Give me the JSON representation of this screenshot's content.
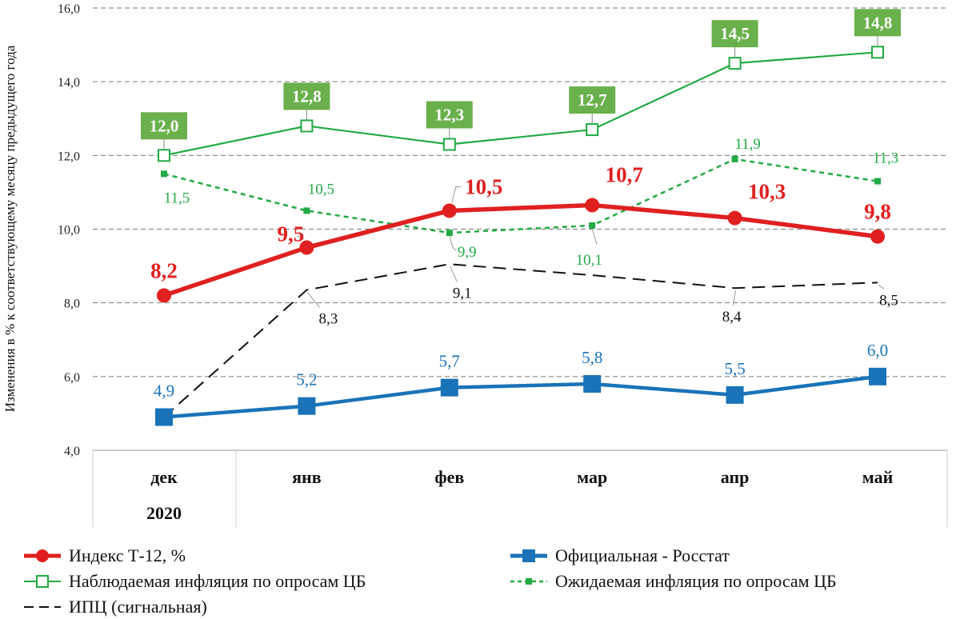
{
  "chart_data": {
    "type": "line",
    "ylabel": "Изменения в % к соответствующему месяцу предыдущего года",
    "ylim": [
      4.0,
      16.0
    ],
    "yticks": [
      "4,0",
      "6,0",
      "8,0",
      "10,0",
      "12,0",
      "14,0",
      "16,0"
    ],
    "grid": true,
    "categories": [
      "дек",
      "янв",
      "фев",
      "мар",
      "апр",
      "май"
    ],
    "year_label": "2020",
    "legend_position": "bottom",
    "series": [
      {
        "name": "Индекс Т-12, %",
        "values": [
          8.2,
          9.5,
          10.5,
          10.65,
          10.3,
          9.8
        ],
        "labels": [
          "8,2",
          "9,5",
          "10,5",
          "10,7",
          "10,3",
          "9,8"
        ],
        "color": "#e02020",
        "style": "solid-thick-circle"
      },
      {
        "name": "Официальная - Росстат",
        "values": [
          4.9,
          5.2,
          5.7,
          5.8,
          5.5,
          6.0
        ],
        "labels": [
          "4,9",
          "5,2",
          "5,7",
          "5,8",
          "5,5",
          "6,0"
        ],
        "color": "#1a73b8",
        "style": "solid-square"
      },
      {
        "name": "Наблюдаемая инфляция по опросам ЦБ",
        "values": [
          12.0,
          12.8,
          12.3,
          12.7,
          14.5,
          14.8
        ],
        "labels": [
          "12,0",
          "12,8",
          "12,3",
          "12,7",
          "14,5",
          "14,8"
        ],
        "color": "#22aa44",
        "label_bg": "#6ab04c",
        "style": "solid-open-square"
      },
      {
        "name": "Ожидаемая инфляция по опросам ЦБ",
        "values": [
          11.5,
          10.5,
          9.9,
          10.1,
          11.9,
          11.3
        ],
        "labels": [
          "11,5",
          "10,5",
          "9,9",
          "10,1",
          "11,9",
          "11,3"
        ],
        "color": "#22aa44",
        "style": "dashed-small-square"
      },
      {
        "name": "ИПЦ (сигнальная)",
        "values": [
          4.9,
          8.35,
          9.05,
          8.75,
          8.4,
          8.55
        ],
        "labels": [
          "",
          "8,3",
          "9,1",
          "",
          "8,4",
          "8,5"
        ],
        "color": "#111111",
        "style": "dashed"
      }
    ]
  }
}
